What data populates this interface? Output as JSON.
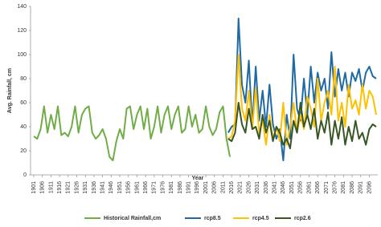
{
  "chart_data": {
    "type": "line",
    "x_label": "Year",
    "y_label": "Avg. Rainfall, cm",
    "xlim": [
      1901,
      2100
    ],
    "ylim": [
      0,
      140
    ],
    "yticks": [
      0,
      20,
      40,
      60,
      80,
      100,
      120,
      140
    ],
    "xticks": [
      1901,
      1906,
      1911,
      1916,
      1921,
      1926,
      1931,
      1936,
      1941,
      1946,
      1951,
      1956,
      1961,
      1966,
      1971,
      1976,
      1981,
      1986,
      1991,
      1996,
      2001,
      2006,
      2011,
      2016,
      2021,
      2026,
      2031,
      2036,
      2041,
      2046,
      2051,
      2056,
      2061,
      2066,
      2071,
      2076,
      2081,
      2086,
      2091,
      2096
    ],
    "grid": false,
    "legend": "bottom",
    "series": [
      {
        "name": "Historical Rainfall,cm",
        "color": "#70ad47",
        "x": [
          1901,
          1903,
          1905,
          1907,
          1909,
          1911,
          1913,
          1915,
          1917,
          1919,
          1921,
          1923,
          1925,
          1927,
          1929,
          1931,
          1933,
          1935,
          1937,
          1939,
          1941,
          1943,
          1945,
          1947,
          1949,
          1951,
          1953,
          1955,
          1957,
          1959,
          1961,
          1963,
          1965,
          1967,
          1969,
          1971,
          1973,
          1975,
          1977,
          1979,
          1981,
          1983,
          1985,
          1987,
          1989,
          1991,
          1993,
          1995,
          1997,
          1999,
          2001,
          2003,
          2005,
          2007,
          2009,
          2011,
          2013,
          2015
        ],
        "values": [
          32,
          30,
          38,
          57,
          35,
          50,
          38,
          57,
          33,
          35,
          32,
          40,
          57,
          35,
          50,
          55,
          57,
          35,
          30,
          33,
          38,
          30,
          15,
          12,
          28,
          38,
          30,
          55,
          57,
          38,
          50,
          57,
          38,
          55,
          30,
          40,
          57,
          35,
          50,
          57,
          38,
          50,
          57,
          35,
          38,
          57,
          40,
          50,
          35,
          38,
          57,
          40,
          33,
          38,
          52,
          57,
          30,
          15
        ]
      },
      {
        "name": "rcp8.5",
        "color": "#1f6aa5",
        "x": [
          2014,
          2016,
          2018,
          2020,
          2022,
          2024,
          2026,
          2028,
          2030,
          2032,
          2034,
          2036,
          2038,
          2040,
          2042,
          2044,
          2046,
          2048,
          2050,
          2052,
          2054,
          2056,
          2058,
          2060,
          2062,
          2064,
          2066,
          2068,
          2070,
          2072,
          2074,
          2076,
          2078,
          2080,
          2082,
          2084,
          2086,
          2088,
          2090,
          2092,
          2094,
          2096,
          2098,
          2100
        ],
        "values": [
          35,
          40,
          42,
          130,
          75,
          60,
          95,
          40,
          90,
          45,
          70,
          40,
          75,
          42,
          30,
          38,
          12,
          50,
          30,
          100,
          55,
          45,
          80,
          50,
          90,
          60,
          85,
          70,
          80,
          55,
          102,
          65,
          88,
          70,
          85,
          65,
          85,
          78,
          88,
          70,
          85,
          90,
          82,
          80
        ]
      },
      {
        "name": "rcp4.5",
        "color": "#ffc000",
        "x": [
          2014,
          2016,
          2018,
          2020,
          2022,
          2024,
          2026,
          2028,
          2030,
          2032,
          2034,
          2036,
          2038,
          2040,
          2042,
          2044,
          2046,
          2048,
          2050,
          2052,
          2054,
          2056,
          2058,
          2060,
          2062,
          2064,
          2066,
          2068,
          2070,
          2072,
          2074,
          2076,
          2078,
          2080,
          2082,
          2084,
          2086,
          2088,
          2090,
          2092,
          2094,
          2096,
          2098,
          2100
        ],
        "values": [
          30,
          32,
          45,
          100,
          55,
          45,
          70,
          38,
          72,
          35,
          45,
          25,
          50,
          30,
          40,
          28,
          60,
          25,
          40,
          60,
          35,
          50,
          38,
          65,
          55,
          40,
          80,
          45,
          60,
          70,
          50,
          90,
          45,
          60,
          40,
          75,
          55,
          62,
          50,
          75,
          55,
          70,
          65,
          50
        ]
      },
      {
        "name": "rcp2.6",
        "color": "#375623",
        "x": [
          2014,
          2016,
          2018,
          2020,
          2022,
          2024,
          2026,
          2028,
          2030,
          2032,
          2034,
          2036,
          2038,
          2040,
          2042,
          2044,
          2046,
          2048,
          2050,
          2052,
          2054,
          2056,
          2058,
          2060,
          2062,
          2064,
          2066,
          2068,
          2070,
          2072,
          2074,
          2076,
          2078,
          2080,
          2082,
          2084,
          2086,
          2088,
          2090,
          2092,
          2094,
          2096,
          2098,
          2100
        ],
        "values": [
          30,
          28,
          35,
          60,
          42,
          35,
          55,
          38,
          40,
          30,
          50,
          35,
          45,
          28,
          40,
          35,
          25,
          30,
          22,
          45,
          35,
          60,
          40,
          50,
          38,
          55,
          30,
          45,
          35,
          52,
          25,
          45,
          30,
          48,
          25,
          40,
          28,
          45,
          30,
          35,
          25,
          38,
          42,
          40
        ]
      }
    ]
  }
}
